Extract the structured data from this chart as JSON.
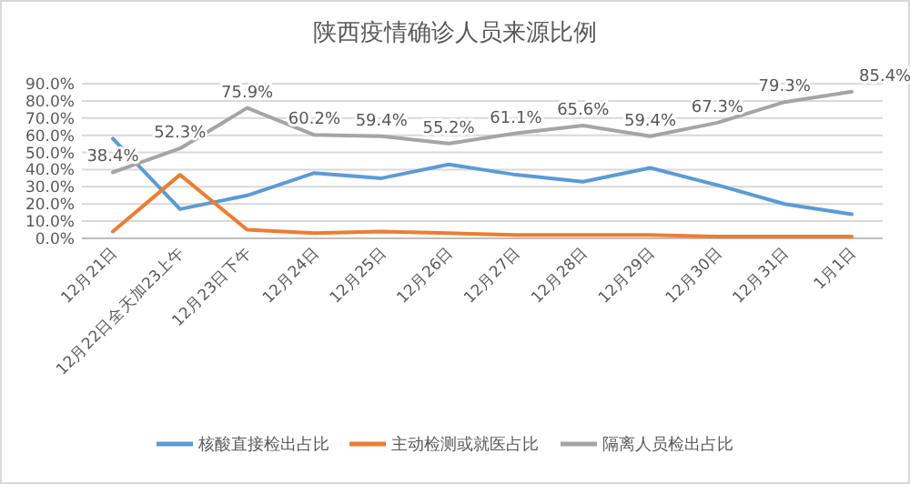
{
  "chart_data": {
    "type": "line",
    "title": "陕西疫情确诊人员来源比例",
    "categories": [
      "12月21日",
      "12月22日全天加23上午",
      "12月23日下午",
      "12月24日",
      "12月25日",
      "12月26日",
      "12月27日",
      "12月28日",
      "12月29日",
      "12月30日",
      "12月31日",
      "1月1日"
    ],
    "series": [
      {
        "name": "核酸直接检出占比",
        "color": "#5b9bd5",
        "values": [
          58,
          17,
          25,
          38,
          35,
          43,
          37,
          33,
          41,
          31,
          20,
          14
        ]
      },
      {
        "name": "主动检测或就医占比",
        "color": "#ed7d31",
        "values": [
          4,
          37,
          5,
          3,
          4,
          3,
          2,
          2,
          2,
          1,
          1,
          1
        ]
      },
      {
        "name": "隔离人员检出占比",
        "color": "#a5a5a5",
        "values": [
          38.4,
          52.3,
          75.9,
          60.2,
          59.4,
          55.2,
          61.1,
          65.6,
          59.4,
          67.3,
          79.3,
          85.4
        ],
        "value_labels": [
          "38.4%",
          "52.3%",
          "75.9%",
          "60.2%",
          "59.4%",
          "55.2%",
          "61.1%",
          "65.6%",
          "59.4%",
          "67.3%",
          "79.3%",
          "85.4%"
        ]
      }
    ],
    "ylim": [
      0,
      90
    ],
    "yticks": [
      {
        "value": 0,
        "label": "0.0%"
      },
      {
        "value": 10,
        "label": "10.0%"
      },
      {
        "value": 20,
        "label": "20.0%"
      },
      {
        "value": 30,
        "label": "30.0%"
      },
      {
        "value": 40,
        "label": "40.0%"
      },
      {
        "value": 50,
        "label": "50.0%"
      },
      {
        "value": 60,
        "label": "60.0%"
      },
      {
        "value": 70,
        "label": "70.0%"
      },
      {
        "value": 80,
        "label": "80.0%"
      },
      {
        "value": 90,
        "label": "90.0%"
      }
    ],
    "grid": "y",
    "legend": "bottom",
    "marker": "none",
    "line_style": "solid"
  }
}
